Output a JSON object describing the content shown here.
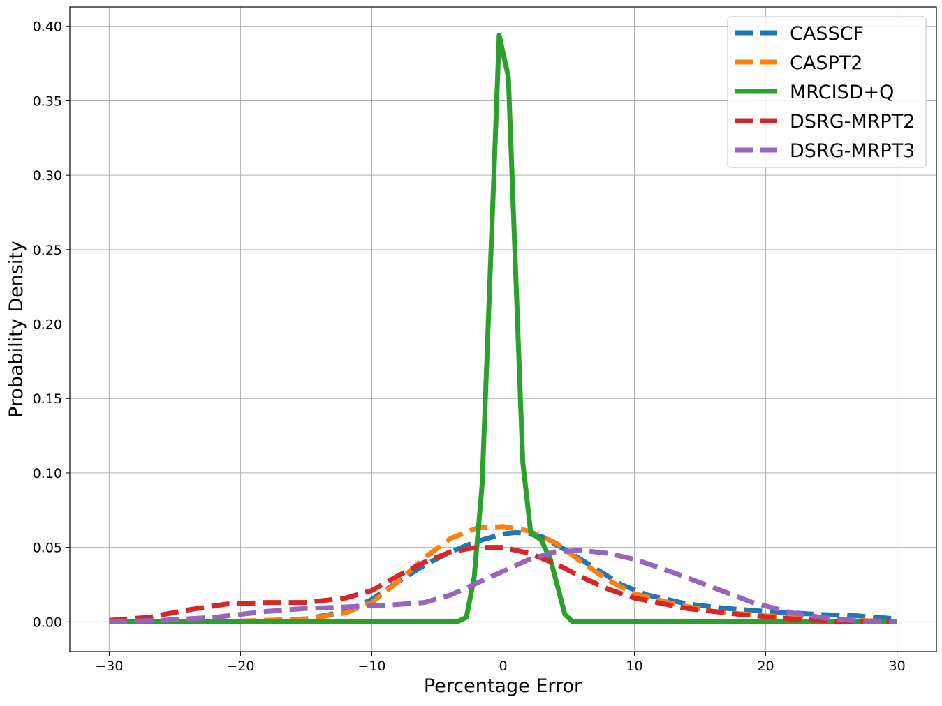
{
  "chart_data": {
    "type": "line",
    "title": "",
    "xlabel": "Percentage Error",
    "ylabel": "Probability Density",
    "xlim": [
      -33,
      33
    ],
    "ylim": [
      -0.02,
      0.413
    ],
    "xticks": [
      -30,
      -20,
      -10,
      0,
      10,
      20,
      30
    ],
    "yticks": [
      0.0,
      0.05,
      0.1,
      0.15,
      0.2,
      0.25,
      0.3,
      0.35,
      0.4
    ],
    "xtick_labels": [
      "−30",
      "−20",
      "−10",
      "0",
      "10",
      "20",
      "30"
    ],
    "ytick_labels": [
      "0.00",
      "0.05",
      "0.10",
      "0.15",
      "0.20",
      "0.25",
      "0.30",
      "0.35",
      "0.40"
    ],
    "grid": true,
    "legend_position": "top-right",
    "series": [
      {
        "name": "CASSCF",
        "color": "#1f77b4",
        "dash": "dashed",
        "points": [
          [
            -30,
            0.0
          ],
          [
            -25,
            0.0
          ],
          [
            -20,
            0.0
          ],
          [
            -15,
            0.002
          ],
          [
            -12,
            0.007
          ],
          [
            -10,
            0.015
          ],
          [
            -8,
            0.027
          ],
          [
            -6,
            0.038
          ],
          [
            -4,
            0.047
          ],
          [
            -2,
            0.054
          ],
          [
            0,
            0.059
          ],
          [
            1,
            0.06
          ],
          [
            2,
            0.059
          ],
          [
            3,
            0.057
          ],
          [
            5,
            0.047
          ],
          [
            7,
            0.036
          ],
          [
            9,
            0.025
          ],
          [
            11,
            0.018
          ],
          [
            14,
            0.012
          ],
          [
            17,
            0.009
          ],
          [
            20,
            0.007
          ],
          [
            24,
            0.005
          ],
          [
            27,
            0.004
          ],
          [
            30,
            0.002
          ]
        ]
      },
      {
        "name": "CASPT2",
        "color": "#ff7f0e",
        "dash": "dashed",
        "points": [
          [
            -30,
            0.0
          ],
          [
            -22,
            0.0
          ],
          [
            -18,
            0.001
          ],
          [
            -15,
            0.002
          ],
          [
            -12,
            0.006
          ],
          [
            -10,
            0.013
          ],
          [
            -8,
            0.027
          ],
          [
            -6,
            0.043
          ],
          [
            -4,
            0.056
          ],
          [
            -2,
            0.063
          ],
          [
            0,
            0.064
          ],
          [
            2,
            0.061
          ],
          [
            4,
            0.053
          ],
          [
            6,
            0.04
          ],
          [
            8,
            0.028
          ],
          [
            10,
            0.019
          ],
          [
            13,
            0.012
          ],
          [
            16,
            0.007
          ],
          [
            20,
            0.004
          ],
          [
            24,
            0.002
          ],
          [
            27,
            0.001
          ],
          [
            30,
            0.0
          ]
        ]
      },
      {
        "name": "MRCISD+Q",
        "color": "#2ca02c",
        "dash": "solid",
        "points": [
          [
            -30,
            0.0
          ],
          [
            -3.5,
            0.0
          ],
          [
            -2.8,
            0.003
          ],
          [
            -2.2,
            0.03
          ],
          [
            -1.6,
            0.092
          ],
          [
            -0.3,
            0.394
          ],
          [
            0.4,
            0.366
          ],
          [
            1.5,
            0.107
          ],
          [
            2.1,
            0.06
          ],
          [
            2.9,
            0.055
          ],
          [
            3.6,
            0.042
          ],
          [
            4.2,
            0.022
          ],
          [
            4.7,
            0.005
          ],
          [
            5.3,
            0.0
          ],
          [
            30,
            0.0
          ]
        ]
      },
      {
        "name": "DSRG-MRPT2",
        "color": "#d62728",
        "dash": "dashed",
        "points": [
          [
            -30,
            0.001
          ],
          [
            -27,
            0.003
          ],
          [
            -24,
            0.008
          ],
          [
            -21,
            0.012
          ],
          [
            -18,
            0.013
          ],
          [
            -15,
            0.013
          ],
          [
            -12,
            0.016
          ],
          [
            -10,
            0.021
          ],
          [
            -8,
            0.031
          ],
          [
            -6,
            0.04
          ],
          [
            -4,
            0.047
          ],
          [
            -2,
            0.05
          ],
          [
            0,
            0.05
          ],
          [
            2,
            0.046
          ],
          [
            4,
            0.039
          ],
          [
            6,
            0.03
          ],
          [
            8,
            0.022
          ],
          [
            10,
            0.016
          ],
          [
            14,
            0.009
          ],
          [
            18,
            0.005
          ],
          [
            22,
            0.002
          ],
          [
            26,
            0.0
          ],
          [
            30,
            0.0
          ]
        ]
      },
      {
        "name": "DSRG-MRPT3",
        "color": "#9467bd",
        "dash": "dashed",
        "points": [
          [
            -30,
            0.0
          ],
          [
            -26,
            0.001
          ],
          [
            -22,
            0.003
          ],
          [
            -18,
            0.007
          ],
          [
            -15,
            0.009
          ],
          [
            -12,
            0.01
          ],
          [
            -9,
            0.011
          ],
          [
            -6,
            0.013
          ],
          [
            -4,
            0.018
          ],
          [
            -2,
            0.026
          ],
          [
            0,
            0.034
          ],
          [
            2,
            0.042
          ],
          [
            4,
            0.047
          ],
          [
            6,
            0.048
          ],
          [
            8,
            0.046
          ],
          [
            10,
            0.042
          ],
          [
            13,
            0.033
          ],
          [
            16,
            0.023
          ],
          [
            19,
            0.013
          ],
          [
            22,
            0.006
          ],
          [
            25,
            0.002
          ],
          [
            28,
            0.0
          ],
          [
            30,
            0.0
          ]
        ]
      }
    ]
  }
}
